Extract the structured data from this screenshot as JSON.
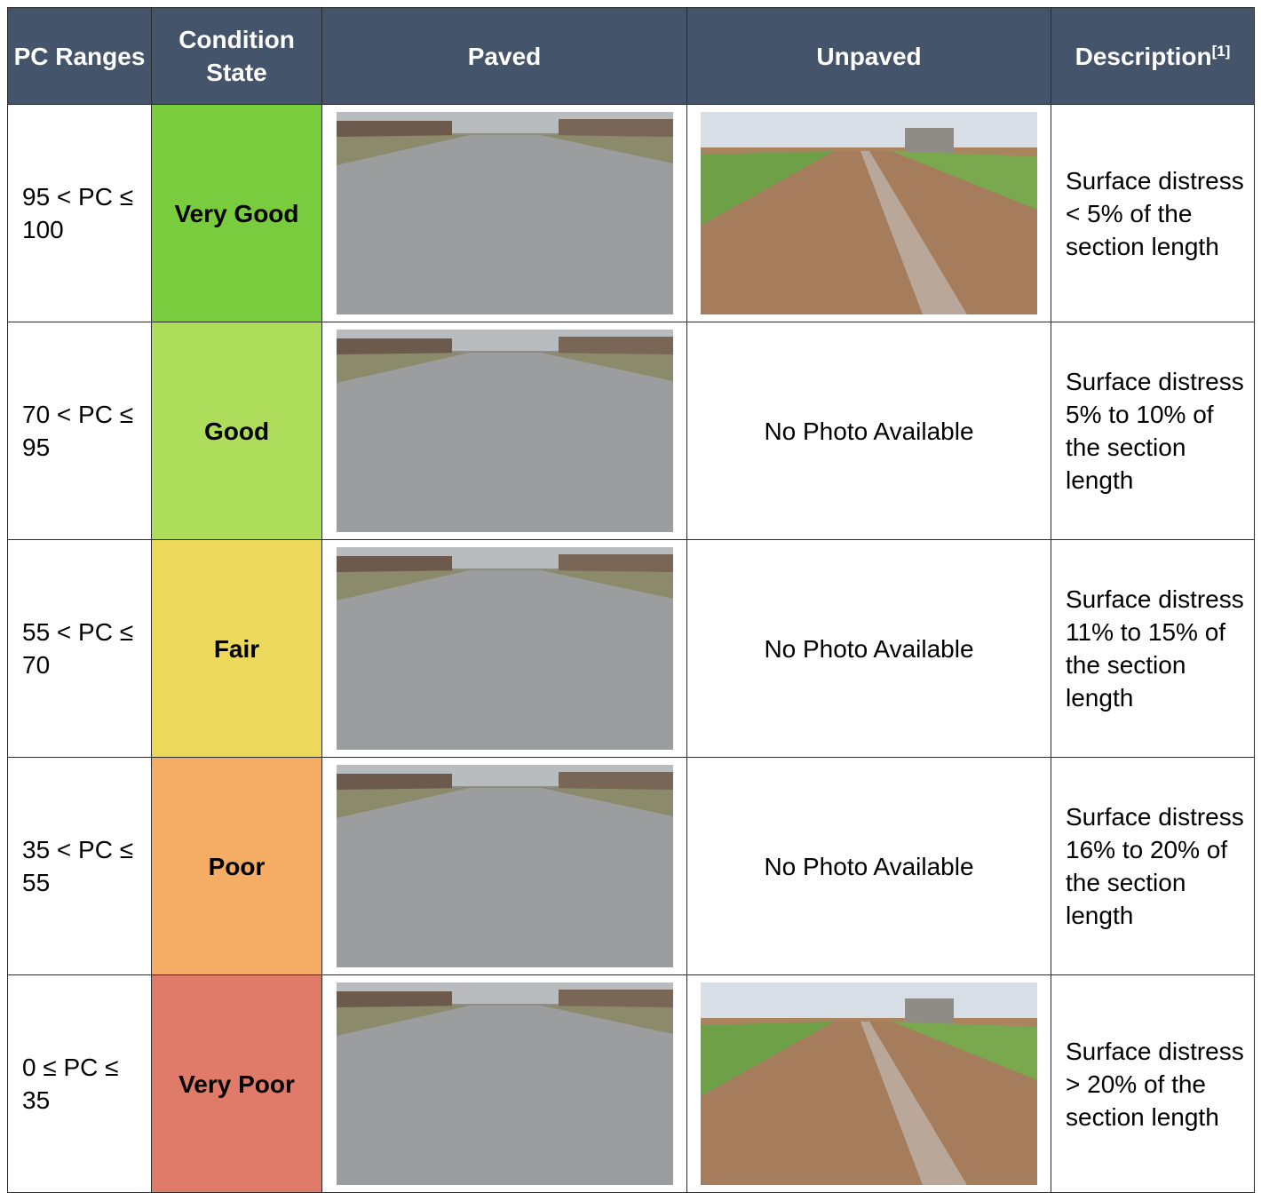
{
  "header": [
    {
      "text": "PC Ranges"
    },
    {
      "text": "Condition State"
    },
    {
      "text": "Paved"
    },
    {
      "text": "Unpaved"
    },
    {
      "text": "Description",
      "note": "[1]"
    }
  ],
  "rows": [
    {
      "pc_range": "95 < PC ≤ 100",
      "condition": "Very Good",
      "description": "Surface distress < 5% of the section length"
    },
    {
      "pc_range": "70 < PC ≤ 95",
      "condition": "Good",
      "unpaved": "No Photo Available",
      "description": "Surface distress 5% to 10% of the section length"
    },
    {
      "pc_range": "55 < PC ≤ 70",
      "condition": "Fair",
      "unpaved": "No Photo Available",
      "description": "Surface distress 11% to 15% of the section length"
    },
    {
      "pc_range": "35 < PC ≤ 55",
      "condition": "Poor",
      "unpaved": "No Photo Available",
      "description": "Surface distress 16% to 20% of the section length"
    },
    {
      "pc_range": "0 ≤ PC ≤ 35",
      "condition": "Very Poor",
      "description": "Surface distress > 20% of the section length"
    }
  ]
}
